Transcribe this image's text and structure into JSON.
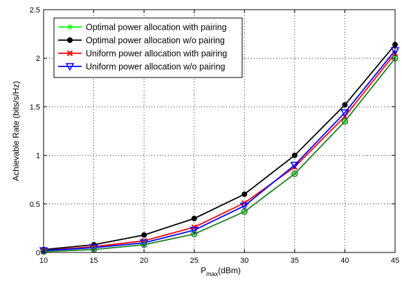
{
  "chart_data": {
    "type": "line",
    "x": [
      10,
      15,
      20,
      25,
      30,
      35,
      40,
      45
    ],
    "xlim": [
      10,
      45
    ],
    "ylim": [
      0,
      2.5
    ],
    "xticks": [
      "10",
      "15",
      "20",
      "25",
      "30",
      "35",
      "40",
      "45"
    ],
    "yticks": [
      "0",
      "0.5",
      "1",
      "1.5",
      "2",
      "2.5"
    ],
    "xlabel_main": "P",
    "xlabel_sub": "max",
    "xlabel_unit": "(dBm)",
    "ylabel": "Achievable Rate (bits/s/Hz)",
    "grid": true,
    "legend_position": "top-left",
    "series": [
      {
        "name": "Optimal power allocation with pairing",
        "color": "#00ff00",
        "marker": "asterisk",
        "values": [
          0.01,
          0.03,
          0.08,
          0.19,
          0.42,
          0.81,
          1.35,
          2.0
        ]
      },
      {
        "name": "Optimal power allocation w/o pairing",
        "color": "#000000",
        "marker": "filled-circle",
        "values": [
          0.03,
          0.08,
          0.18,
          0.35,
          0.6,
          1.0,
          1.52,
          2.14
        ]
      },
      {
        "name": "Uniform power allocation with pairing",
        "color": "#ff0000",
        "marker": "x",
        "values": [
          0.02,
          0.06,
          0.12,
          0.26,
          0.51,
          0.88,
          1.4,
          2.05
        ]
      },
      {
        "name": "Uniform power allocation w/o pairing",
        "color": "#0000ff",
        "marker": "triangle-down",
        "values": [
          0.02,
          0.05,
          0.1,
          0.23,
          0.48,
          0.9,
          1.44,
          2.08
        ]
      },
      {
        "color": "#2e7d32",
        "marker": "open-circle",
        "values": [
          0.01,
          0.03,
          0.08,
          0.19,
          0.42,
          0.81,
          1.35,
          2.0
        ]
      }
    ]
  }
}
